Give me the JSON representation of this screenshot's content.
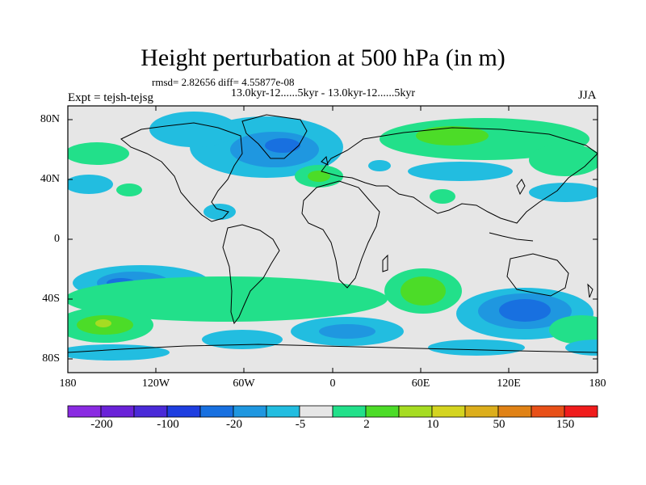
{
  "title": "Height perturbation at 500 hPa (in m)",
  "stats_line": "rmsd= 2.82656 diff= 4.55877e-08",
  "experiments_line": "13.0kyr-12......5kyr - 13.0kyr-12......5kyr",
  "expt_label": "Expt = tejsh-tejsg",
  "season": "JJA",
  "axes": {
    "lat_labels": [
      "80N",
      "40N",
      "0",
      "40S",
      "80S"
    ],
    "lon_labels": [
      "180",
      "120W",
      "60W",
      "0",
      "60E",
      "120E",
      "180"
    ]
  },
  "colorbar": {
    "labels": [
      "-200",
      "-100",
      "-20",
      "-5",
      "2",
      "10",
      "50",
      "150"
    ],
    "colors": [
      "#8a2be2",
      "#6a22d8",
      "#4a2ad8",
      "#1e3ee0",
      "#1870e0",
      "#1f97e0",
      "#22bde0",
      "#e6e6e6",
      "#22e08a",
      "#4cdc28",
      "#a6dc22",
      "#d4d420",
      "#dcae1c",
      "#e08216",
      "#e85018",
      "#f01c1c"
    ]
  },
  "map_colors": {
    "background": "#e6e6e6",
    "light_blue": "#22bde0",
    "mid_blue": "#1f97e0",
    "dark_blue": "#1870e0",
    "light_green": "#22e08a",
    "mid_green": "#4cdc28",
    "yellow_green": "#a6dc22",
    "coast": "#000000"
  }
}
